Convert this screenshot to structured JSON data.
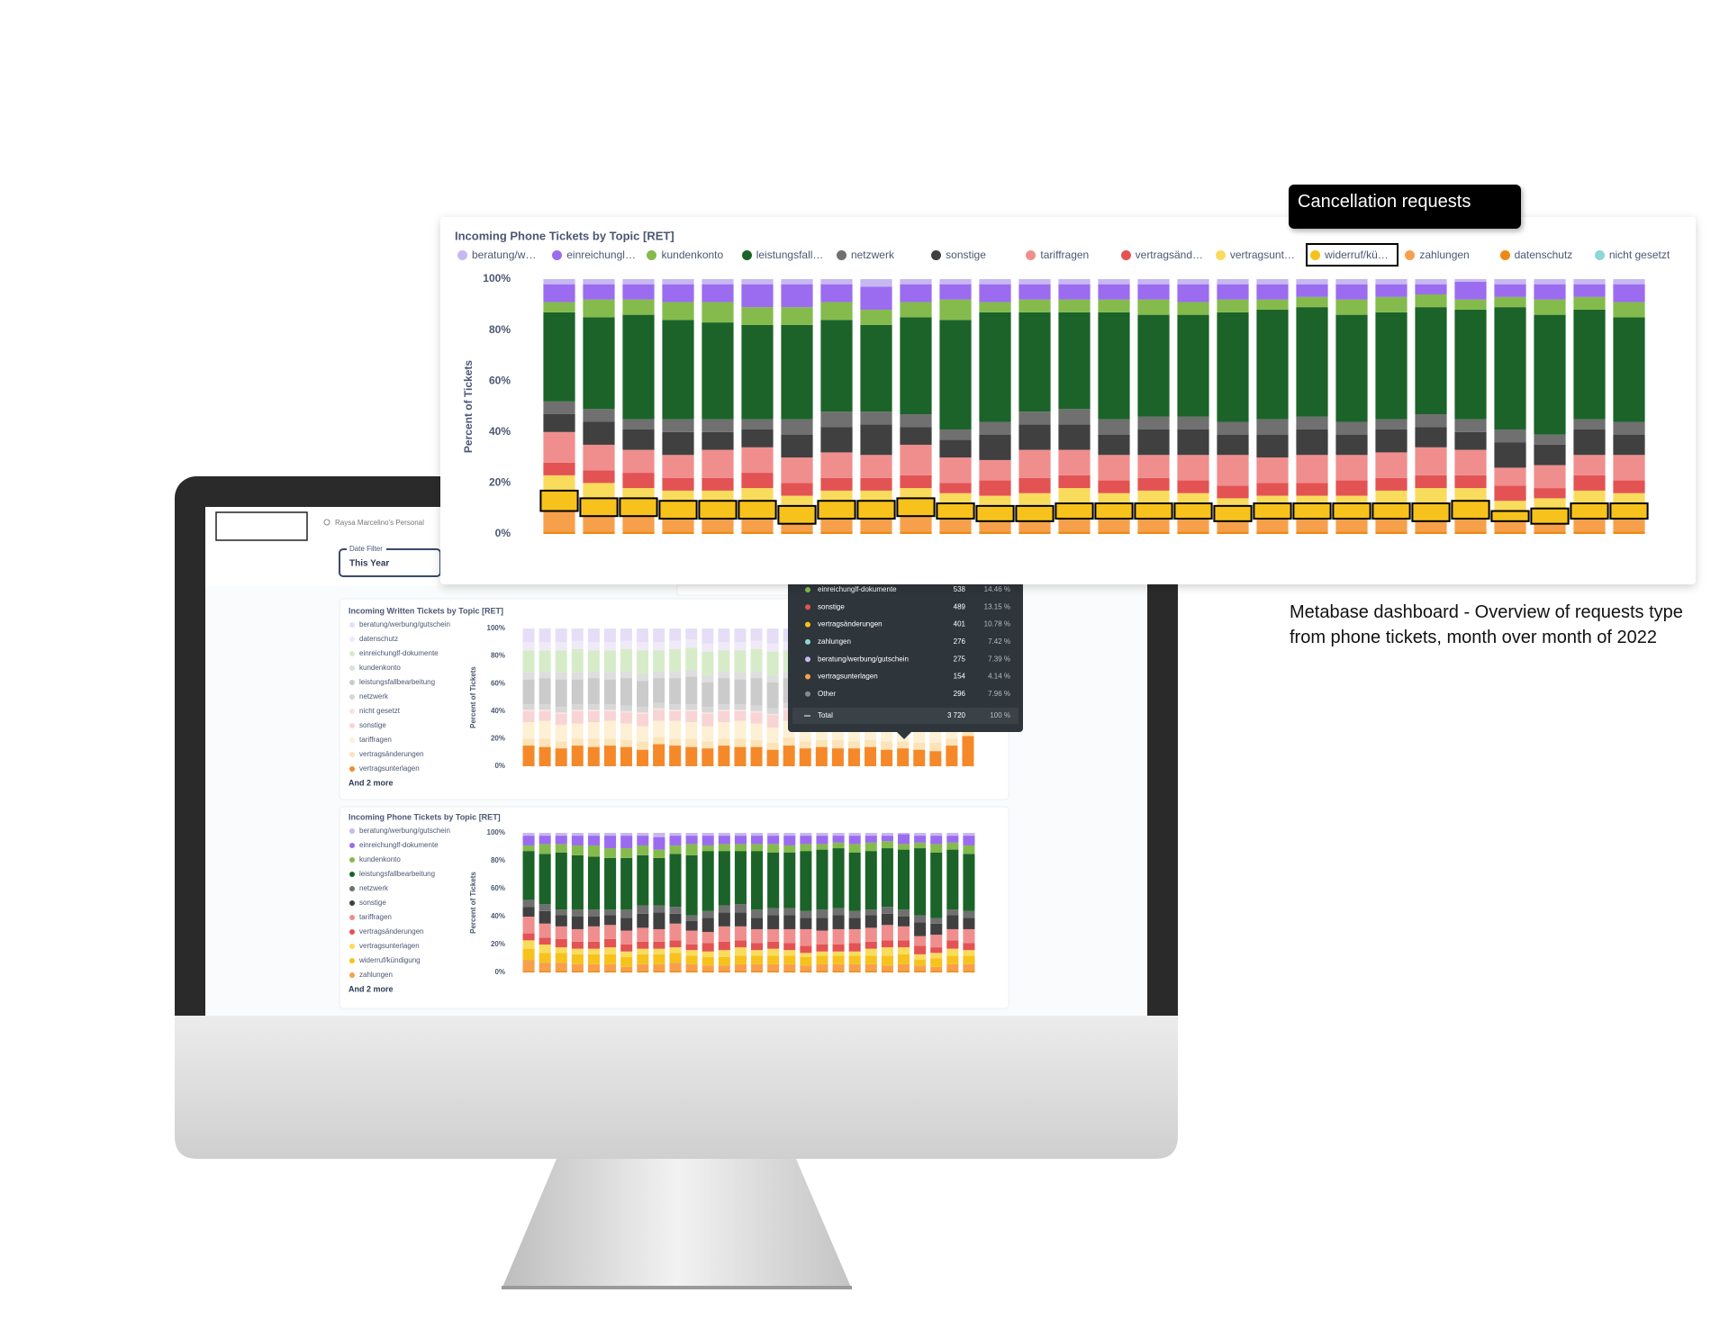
{
  "chart_data": [
    {
      "type": "stacked_bar",
      "title": "Incoming Phone Tickets by Topic [RET]",
      "y_label": "Percent of Tickets",
      "ylim": [
        0,
        100
      ],
      "yticks": [
        {
          "value": 0,
          "label": "0%"
        },
        {
          "value": 20,
          "label": "20%"
        },
        {
          "value": 40,
          "label": "40%"
        },
        {
          "value": 60,
          "label": "60%"
        },
        {
          "value": 80,
          "label": "80%"
        },
        {
          "value": 100,
          "label": "100%"
        }
      ],
      "highlight": "widerruf/kündigung",
      "legend_more": "And 2 more",
      "series": [
        {
          "name": "beratung/werbung/gutschein",
          "color": "#c7b8f2",
          "values": [
            2,
            2,
            2,
            2,
            2,
            2,
            2,
            2,
            3,
            2,
            2,
            2,
            2,
            2,
            2,
            2,
            2,
            2,
            2,
            2,
            2,
            2,
            2,
            1,
            2,
            2,
            2,
            2
          ]
        },
        {
          "name": "einreichunglf-dokumente",
          "color": "#9b6cf0",
          "values": [
            7,
            6,
            6,
            7,
            7,
            9,
            9,
            7,
            9,
            7,
            6,
            7,
            6,
            6,
            6,
            6,
            7,
            6,
            6,
            5,
            6,
            5,
            4,
            7,
            5,
            6,
            5,
            7
          ]
        },
        {
          "name": "kundenkonto",
          "color": "#84bb4c",
          "values": [
            4,
            7,
            6,
            7,
            8,
            7,
            7,
            7,
            6,
            6,
            8,
            4,
            5,
            5,
            5,
            6,
            5,
            5,
            4,
            4,
            6,
            6,
            5,
            4,
            4,
            6,
            5,
            6
          ]
        },
        {
          "name": "leistungsfallbearbeitung",
          "color": "#1b6329",
          "values": [
            35,
            36,
            41,
            39,
            38,
            37,
            37,
            36,
            34,
            38,
            43,
            43,
            39,
            38,
            42,
            40,
            40,
            43,
            43,
            43,
            42,
            42,
            42,
            43,
            48,
            47,
            43,
            41
          ]
        },
        {
          "name": "netzwerk",
          "color": "#707070",
          "values": [
            5,
            5,
            4,
            5,
            5,
            4,
            6,
            6,
            5,
            5,
            4,
            5,
            5,
            6,
            6,
            5,
            5,
            5,
            6,
            5,
            5,
            4,
            5,
            5,
            5,
            4,
            4,
            5
          ]
        },
        {
          "name": "sonstige",
          "color": "#404040",
          "values": [
            7,
            9,
            8,
            9,
            7,
            7,
            9,
            10,
            12,
            7,
            7,
            10,
            10,
            10,
            8,
            10,
            10,
            8,
            9,
            10,
            8,
            9,
            8,
            7,
            10,
            8,
            10,
            8
          ]
        },
        {
          "name": "tariffragen",
          "color": "#f08e8e",
          "values": [
            12,
            10,
            9,
            9,
            11,
            10,
            10,
            10,
            9,
            12,
            10,
            8,
            11,
            10,
            10,
            9,
            10,
            12,
            10,
            11,
            10,
            10,
            11,
            10,
            7,
            9,
            8,
            10
          ]
        },
        {
          "name": "vertragsänderungen",
          "color": "#e35353",
          "values": [
            5,
            5,
            6,
            5,
            5,
            6,
            5,
            5,
            5,
            5,
            4,
            6,
            6,
            5,
            5,
            5,
            5,
            5,
            5,
            5,
            6,
            5,
            5,
            5,
            6,
            4,
            6,
            5
          ]
        },
        {
          "name": "vertragsunterlagen",
          "color": "#f9dc5c",
          "values": [
            6,
            6,
            4,
            4,
            4,
            5,
            4,
            4,
            4,
            4,
            4,
            4,
            5,
            6,
            4,
            5,
            4,
            3,
            3,
            3,
            3,
            5,
            6,
            5,
            4,
            4,
            5,
            4
          ]
        },
        {
          "name": "widerruf/kündigung",
          "color": "#f7c21c",
          "values": [
            8,
            7,
            7,
            7,
            7,
            7,
            7,
            7,
            7,
            7,
            6,
            6,
            6,
            6,
            6,
            6,
            6,
            6,
            6,
            6,
            6,
            6,
            7,
            7,
            4,
            6,
            6,
            6
          ]
        },
        {
          "name": "zahlungen",
          "color": "#f7a04b",
          "values": [
            8,
            6,
            6,
            5,
            5,
            5,
            3,
            5,
            5,
            6,
            5,
            4,
            4,
            5,
            5,
            5,
            5,
            4,
            5,
            5,
            5,
            5,
            4,
            5,
            4,
            3,
            5,
            5
          ]
        },
        {
          "name": "datenschutz",
          "color": "#ef8915",
          "values": [
            1,
            1,
            1,
            1,
            1,
            1,
            1,
            1,
            1,
            1,
            1,
            1,
            1,
            1,
            1,
            1,
            1,
            1,
            1,
            1,
            1,
            1,
            1,
            1,
            1,
            1,
            1,
            1
          ]
        },
        {
          "name": "nicht gesetzt",
          "color": "#8fd6d6",
          "values": [
            0,
            0,
            0,
            0,
            0,
            0,
            0,
            0,
            0,
            0,
            0,
            0,
            0,
            0,
            0,
            0,
            0,
            0,
            0,
            0,
            0,
            0,
            0,
            0,
            0,
            0,
            0,
            0
          ]
        }
      ]
    },
    {
      "type": "stacked_bar",
      "title": "Incoming Written Tickets by Topic [RET]",
      "y_label": "Percent of Tickets",
      "ylim": [
        0,
        100
      ],
      "yticks": [
        {
          "value": 0,
          "label": "0%"
        },
        {
          "value": 20,
          "label": "20%"
        },
        {
          "value": 40,
          "label": "40%"
        },
        {
          "value": 60,
          "label": "60%"
        },
        {
          "value": 80,
          "label": "80%"
        },
        {
          "value": 100,
          "label": "100%"
        }
      ],
      "legend_more": "And 2 more",
      "series": [
        {
          "name": "beratung/werbung/gutschein",
          "color": "#e6def6",
          "values": [
            10,
            10,
            10,
            9,
            10,
            10,
            9,
            10,
            10,
            9,
            8,
            11,
            10,
            10,
            9,
            11,
            10,
            11,
            9,
            10,
            12,
            11,
            10,
            10,
            14,
            12,
            8,
            7
          ]
        },
        {
          "name": "datenschutz",
          "color": "#efe9f8",
          "values": [
            6,
            6,
            6,
            6,
            6,
            6,
            6,
            6,
            6,
            6,
            6,
            6,
            6,
            6,
            6,
            6,
            6,
            6,
            6,
            6,
            6,
            6,
            6,
            6,
            6,
            6,
            6,
            6
          ]
        },
        {
          "name": "einreichunglf-dokumente",
          "color": "#d6ecc8",
          "values": [
            16,
            15,
            16,
            17,
            15,
            16,
            16,
            17,
            15,
            16,
            16,
            17,
            15,
            16,
            16,
            17,
            15,
            16,
            16,
            17,
            15,
            16,
            16,
            17,
            15,
            16,
            16,
            15
          ]
        },
        {
          "name": "kundenkonto",
          "color": "#dedede",
          "values": [
            5,
            5,
            5,
            5,
            5,
            5,
            5,
            5,
            5,
            5,
            5,
            5,
            5,
            5,
            5,
            5,
            5,
            5,
            5,
            5,
            5,
            5,
            5,
            5,
            5,
            5,
            5,
            5
          ]
        },
        {
          "name": "leistungsfallbearbeitung",
          "color": "#cbcbcb",
          "values": [
            18,
            19,
            20,
            18,
            19,
            18,
            20,
            19,
            18,
            19,
            20,
            18,
            19,
            18,
            20,
            19,
            18,
            19,
            20,
            18,
            19,
            18,
            20,
            19,
            18,
            19,
            20,
            17
          ]
        },
        {
          "name": "netzwerk",
          "color": "#d7d7d7",
          "values": [
            4,
            4,
            4,
            4,
            4,
            4,
            4,
            4,
            4,
            4,
            4,
            4,
            4,
            4,
            4,
            4,
            4,
            4,
            4,
            4,
            4,
            4,
            4,
            4,
            4,
            4,
            4,
            4
          ]
        },
        {
          "name": "nicht gesetzt",
          "color": "#fbe1e1",
          "values": [
            1,
            1,
            1,
            1,
            1,
            1,
            1,
            1,
            1,
            1,
            1,
            1,
            1,
            1,
            1,
            1,
            1,
            1,
            1,
            1,
            1,
            1,
            1,
            1,
            1,
            1,
            1,
            1
          ]
        },
        {
          "name": "sonstige",
          "color": "#f8d4d4",
          "values": [
            8,
            7,
            8,
            9,
            8,
            7,
            8,
            9,
            8,
            7,
            8,
            9,
            8,
            7,
            8,
            9,
            8,
            7,
            8,
            9,
            8,
            7,
            8,
            9,
            8,
            7,
            8,
            8
          ]
        },
        {
          "name": "tariffragen",
          "color": "#fdf0d4",
          "values": [
            12,
            13,
            12,
            11,
            12,
            13,
            12,
            11,
            12,
            13,
            12,
            11,
            12,
            13,
            12,
            11,
            12,
            13,
            12,
            11,
            12,
            13,
            12,
            11,
            12,
            13,
            12,
            10
          ]
        },
        {
          "name": "vertragsänderungen",
          "color": "#fce4b8",
          "values": [
            5,
            6,
            5,
            5,
            6,
            5,
            5,
            6,
            5,
            5,
            6,
            5,
            5,
            6,
            5,
            5,
            6,
            5,
            5,
            6,
            5,
            5,
            6,
            5,
            5,
            6,
            5,
            5
          ]
        },
        {
          "name": "vertragsunterlagen",
          "color": "#f5892a",
          "values": [
            15,
            14,
            13,
            15,
            14,
            15,
            14,
            12,
            16,
            15,
            14,
            13,
            15,
            14,
            14,
            12,
            15,
            13,
            14,
            13,
            13,
            14,
            12,
            13,
            12,
            11,
            15,
            22
          ]
        }
      ]
    }
  ],
  "annotation": "Cancellation requests",
  "caption": "Metabase dashboard - Overview of requests type from phone tickets, month over month of 2022",
  "dashboard": {
    "user": "Raysa Marcelino's Personal",
    "date_filter_label": "Date Filter",
    "date_filter_value": "This Year"
  },
  "tooltip": {
    "rows": [
      {
        "label": "einreichunglf-dokumente",
        "count": "538",
        "percent": "14.46 %",
        "color": "#84bb4c"
      },
      {
        "label": "sonstige",
        "count": "489",
        "percent": "13.15 %",
        "color": "#e35353"
      },
      {
        "label": "vertragsänderungen",
        "count": "401",
        "percent": "10.78 %",
        "color": "#f7c21c"
      },
      {
        "label": "zahlungen",
        "count": "276",
        "percent": "7.42 %",
        "color": "#8fd6d6"
      },
      {
        "label": "beratung/werbung/gutschein",
        "count": "275",
        "percent": "7.39 %",
        "color": "#c7b8f2"
      },
      {
        "label": "vertragsunterlagen",
        "count": "154",
        "percent": "4.14 %",
        "color": "#f7a04b"
      },
      {
        "label": "Other",
        "count": "296",
        "percent": "7.96 %",
        "color": "#8a8a8a"
      }
    ],
    "total": {
      "label": "Total",
      "count": "3 720",
      "percent": "100 %"
    }
  }
}
